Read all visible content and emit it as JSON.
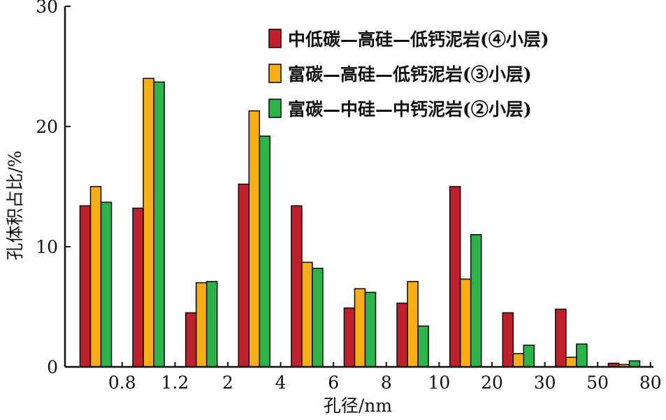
{
  "chart_data": {
    "type": "bar",
    "title": "",
    "xlabel": "孔径/nm",
    "ylabel": "孔体积占比/%",
    "ylim": [
      0,
      30
    ],
    "yticks": [
      "0",
      "10",
      "20",
      "30"
    ],
    "xtick_labels": [
      "0.8",
      "1.2",
      "2",
      "4",
      "6",
      "8",
      "10",
      "20",
      "30",
      "50",
      "80"
    ],
    "bins": [
      "<0.8",
      "0.8–1.2",
      "1.2–2",
      "2–4",
      "4–6",
      "6–8",
      "8–10",
      "10–20",
      "20–30",
      "30–50",
      "50–80"
    ],
    "legend_position": "top-right",
    "grid": false,
    "series": [
      {
        "name": "中低碳—高硅—低钙泥岩(④小层)",
        "color": "#c0202c",
        "values": [
          13.4,
          13.2,
          4.5,
          15.2,
          13.4,
          4.9,
          5.3,
          15.0,
          4.5,
          4.8,
          0.3
        ]
      },
      {
        "name": "富碳—高硅—低钙泥岩(③小层)",
        "color": "#f7ae14",
        "values": [
          15.0,
          24.0,
          7.0,
          21.3,
          8.7,
          6.5,
          7.1,
          7.3,
          1.1,
          0.8,
          0.2
        ]
      },
      {
        "name": "富碳—中硅—中钙泥岩(②小层)",
        "color": "#2bb44a",
        "values": [
          13.7,
          23.7,
          7.1,
          19.2,
          8.2,
          6.2,
          3.4,
          11.0,
          1.8,
          1.9,
          0.5
        ]
      }
    ]
  }
}
